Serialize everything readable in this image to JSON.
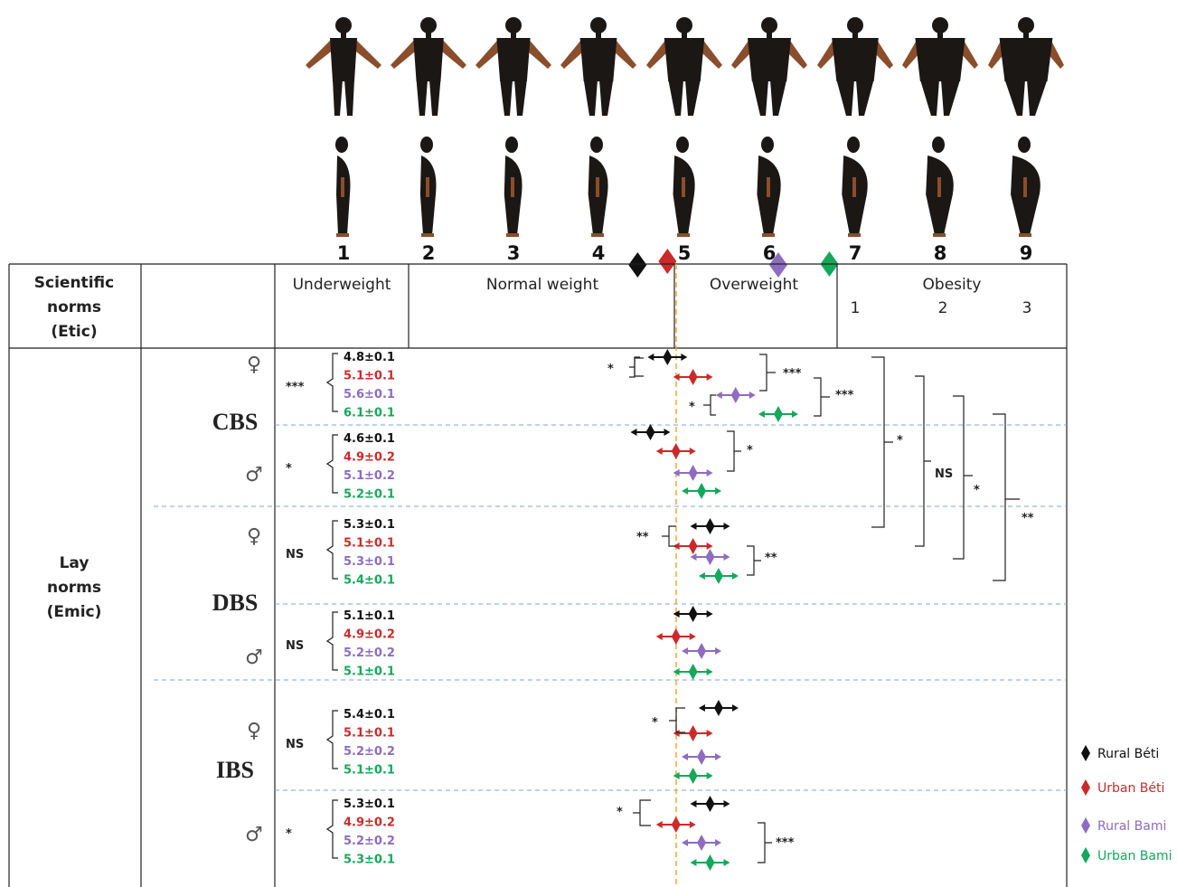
{
  "figure_numbers": [
    "1",
    "2",
    "3",
    "4",
    "5",
    "6",
    "7",
    "8",
    "9"
  ],
  "colors": {
    "rural_beti": "#111111",
    "urban_beti": "#cc2a2a",
    "rural_bami": "#8e6cbf",
    "urban_bami": "#15a85a",
    "reference_line": "#f0a830",
    "dash": "#7ea6e0"
  },
  "header": {
    "scientific_norms": [
      "Scientific",
      "norms",
      "(Etic)"
    ],
    "lay_norms": [
      "Lay",
      "norms",
      "(Emic)"
    ],
    "categories": [
      "Underweight",
      "Normal weight",
      "Overweight",
      "Obesity"
    ],
    "obesity_classes": [
      "1",
      "2",
      "3"
    ]
  },
  "scientific_markers": [
    {
      "group": "Rural Béti",
      "value": 4.45
    },
    {
      "group": "Urban Béti",
      "value": 4.8
    },
    {
      "group": "Rural Bami",
      "value": 6.1
    },
    {
      "group": "Urban Bami",
      "value": 6.7
    }
  ],
  "sex_symbols": {
    "female": "♀",
    "male": "♂"
  },
  "blocks": [
    {
      "label": "CBS",
      "sex": "female",
      "overall_sig": "***",
      "entries": [
        {
          "group": "Rural Béti",
          "text": "4.8±0.1",
          "value": 4.8
        },
        {
          "group": "Urban Béti",
          "text": "5.1±0.1",
          "value": 5.1
        },
        {
          "group": "Rural Bami",
          "text": "5.6±0.1",
          "value": 5.6
        },
        {
          "group": "Urban Bami",
          "text": "6.1±0.1",
          "value": 6.1
        }
      ]
    },
    {
      "label": "",
      "sex": "male",
      "overall_sig": "*",
      "entries": [
        {
          "group": "Rural Béti",
          "text": "4.6±0.1",
          "value": 4.6
        },
        {
          "group": "Urban Béti",
          "text": "4.9±0.2",
          "value": 4.9
        },
        {
          "group": "Rural Bami",
          "text": "5.1±0.2",
          "value": 5.1
        },
        {
          "group": "Urban Bami",
          "text": "5.2±0.1",
          "value": 5.2
        }
      ]
    },
    {
      "label": "DBS",
      "sex": "female",
      "overall_sig": "NS",
      "entries": [
        {
          "group": "Rural Béti",
          "text": "5.3±0.1",
          "value": 5.3
        },
        {
          "group": "Urban Béti",
          "text": "5.1±0.1",
          "value": 5.1
        },
        {
          "group": "Rural Bami",
          "text": "5.3±0.1",
          "value": 5.3
        },
        {
          "group": "Urban Bami",
          "text": "5.4±0.1",
          "value": 5.4
        }
      ]
    },
    {
      "label": "",
      "sex": "male",
      "overall_sig": "NS",
      "entries": [
        {
          "group": "Rural Béti",
          "text": "5.1±0.1",
          "value": 5.1
        },
        {
          "group": "Urban Béti",
          "text": "4.9±0.2",
          "value": 4.9
        },
        {
          "group": "Rural Bami",
          "text": "5.2±0.2",
          "value": 5.2
        },
        {
          "group": "Urban Bami",
          "text": "5.1±0.1",
          "value": 5.1
        }
      ]
    },
    {
      "label": "IBS",
      "sex": "female",
      "overall_sig": "NS",
      "entries": [
        {
          "group": "Rural Béti",
          "text": "5.4±0.1",
          "value": 5.4
        },
        {
          "group": "Urban Béti",
          "text": "5.1±0.1",
          "value": 5.1
        },
        {
          "group": "Rural Bami",
          "text": "5.2±0.2",
          "value": 5.2
        },
        {
          "group": "Urban Bami",
          "text": "5.1±0.1",
          "value": 5.1
        }
      ]
    },
    {
      "label": "",
      "sex": "male",
      "overall_sig": "*",
      "entries": [
        {
          "group": "Rural Béti",
          "text": "5.3±0.1",
          "value": 5.3
        },
        {
          "group": "Urban Béti",
          "text": "4.9±0.2",
          "value": 4.9
        },
        {
          "group": "Rural Bami",
          "text": "5.2±0.2",
          "value": 5.2
        },
        {
          "group": "Urban Bami",
          "text": "5.3±0.1",
          "value": 5.3
        }
      ]
    }
  ],
  "pair_sig": [
    "*",
    "***",
    "*",
    "***",
    "*",
    "**",
    "**",
    "*",
    "*",
    "***"
  ],
  "group_sig": [
    "*",
    "NS",
    "*",
    "**"
  ],
  "legend": [
    {
      "label": "Rural Béti",
      "color": "#111111"
    },
    {
      "label": "Urban Béti",
      "color": "#cc2a2a"
    },
    {
      "label": "Rural Bami",
      "color": "#8e6cbf"
    },
    {
      "label": "Urban Bami",
      "color": "#15a85a"
    }
  ]
}
